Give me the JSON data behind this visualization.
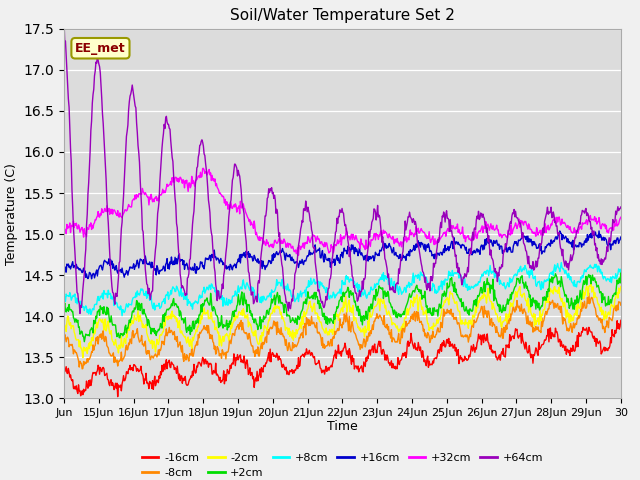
{
  "title": "Soil/Water Temperature Set 2",
  "xlabel": "Time",
  "ylabel": "Temperature (C)",
  "ylim": [
    13.0,
    17.5
  ],
  "annotation": "EE_met",
  "fig_bg_color": "#f0f0f0",
  "axes_bg_color": "#dcdcdc",
  "x_tick_labels": [
    "Jun",
    "15Jun",
    "16Jun",
    "17Jun",
    "18Jun",
    "19Jun",
    "20Jun",
    "21Jun",
    "22Jun",
    "23Jun",
    "24Jun",
    "25Jun",
    "26Jun",
    "27Jun",
    "28Jun",
    "29Jun",
    "30"
  ],
  "series": [
    {
      "label": "-16cm",
      "color": "#ff0000"
    },
    {
      "label": "-8cm",
      "color": "#ff8800"
    },
    {
      "label": "-2cm",
      "color": "#ffff00"
    },
    {
      "label": "+2cm",
      "color": "#00dd00"
    },
    {
      "label": "+8cm",
      "color": "#00ffff"
    },
    {
      "label": "+16cm",
      "color": "#0000cc"
    },
    {
      "label": "+32cm",
      "color": "#ff00ff"
    },
    {
      "label": "+64cm",
      "color": "#9900bb"
    }
  ]
}
